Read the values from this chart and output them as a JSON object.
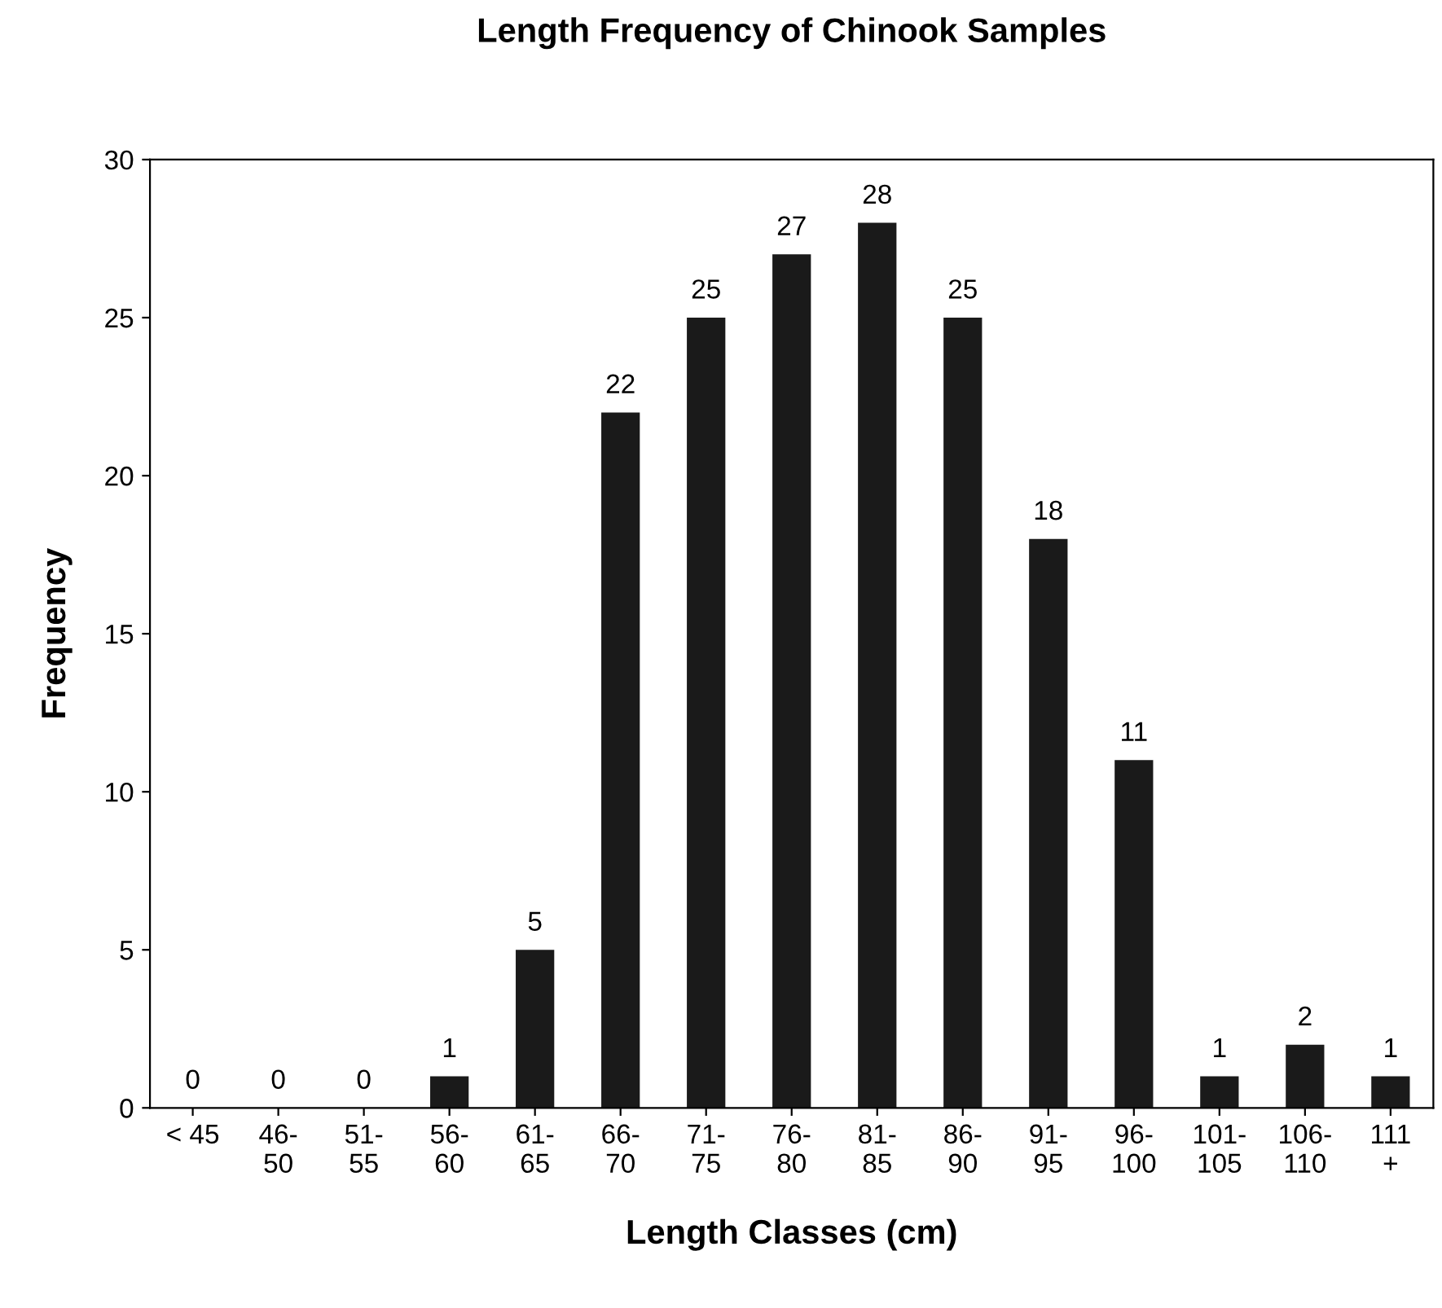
{
  "chart_data": {
    "type": "bar",
    "title": "Length Frequency of Chinook Samples",
    "xlabel": "Length Classes (cm)",
    "ylabel": "Frequency",
    "categories": [
      "< 45",
      "46-\n50",
      "51-\n55",
      "56-\n60",
      "61-\n65",
      "66-\n70",
      "71-\n75",
      "76-\n80",
      "81-\n85",
      "86-\n90",
      "91-\n95",
      "96-\n100",
      "101-\n105",
      "106-\n110",
      "111\n+"
    ],
    "values": [
      0,
      0,
      0,
      1,
      5,
      22,
      25,
      27,
      28,
      25,
      18,
      11,
      1,
      2,
      1
    ],
    "color": "#1a1a1a",
    "ylim": [
      0,
      30
    ],
    "yticks": [
      0,
      5,
      10,
      15,
      20,
      25,
      30
    ],
    "data_labels": true,
    "grid": false
  }
}
